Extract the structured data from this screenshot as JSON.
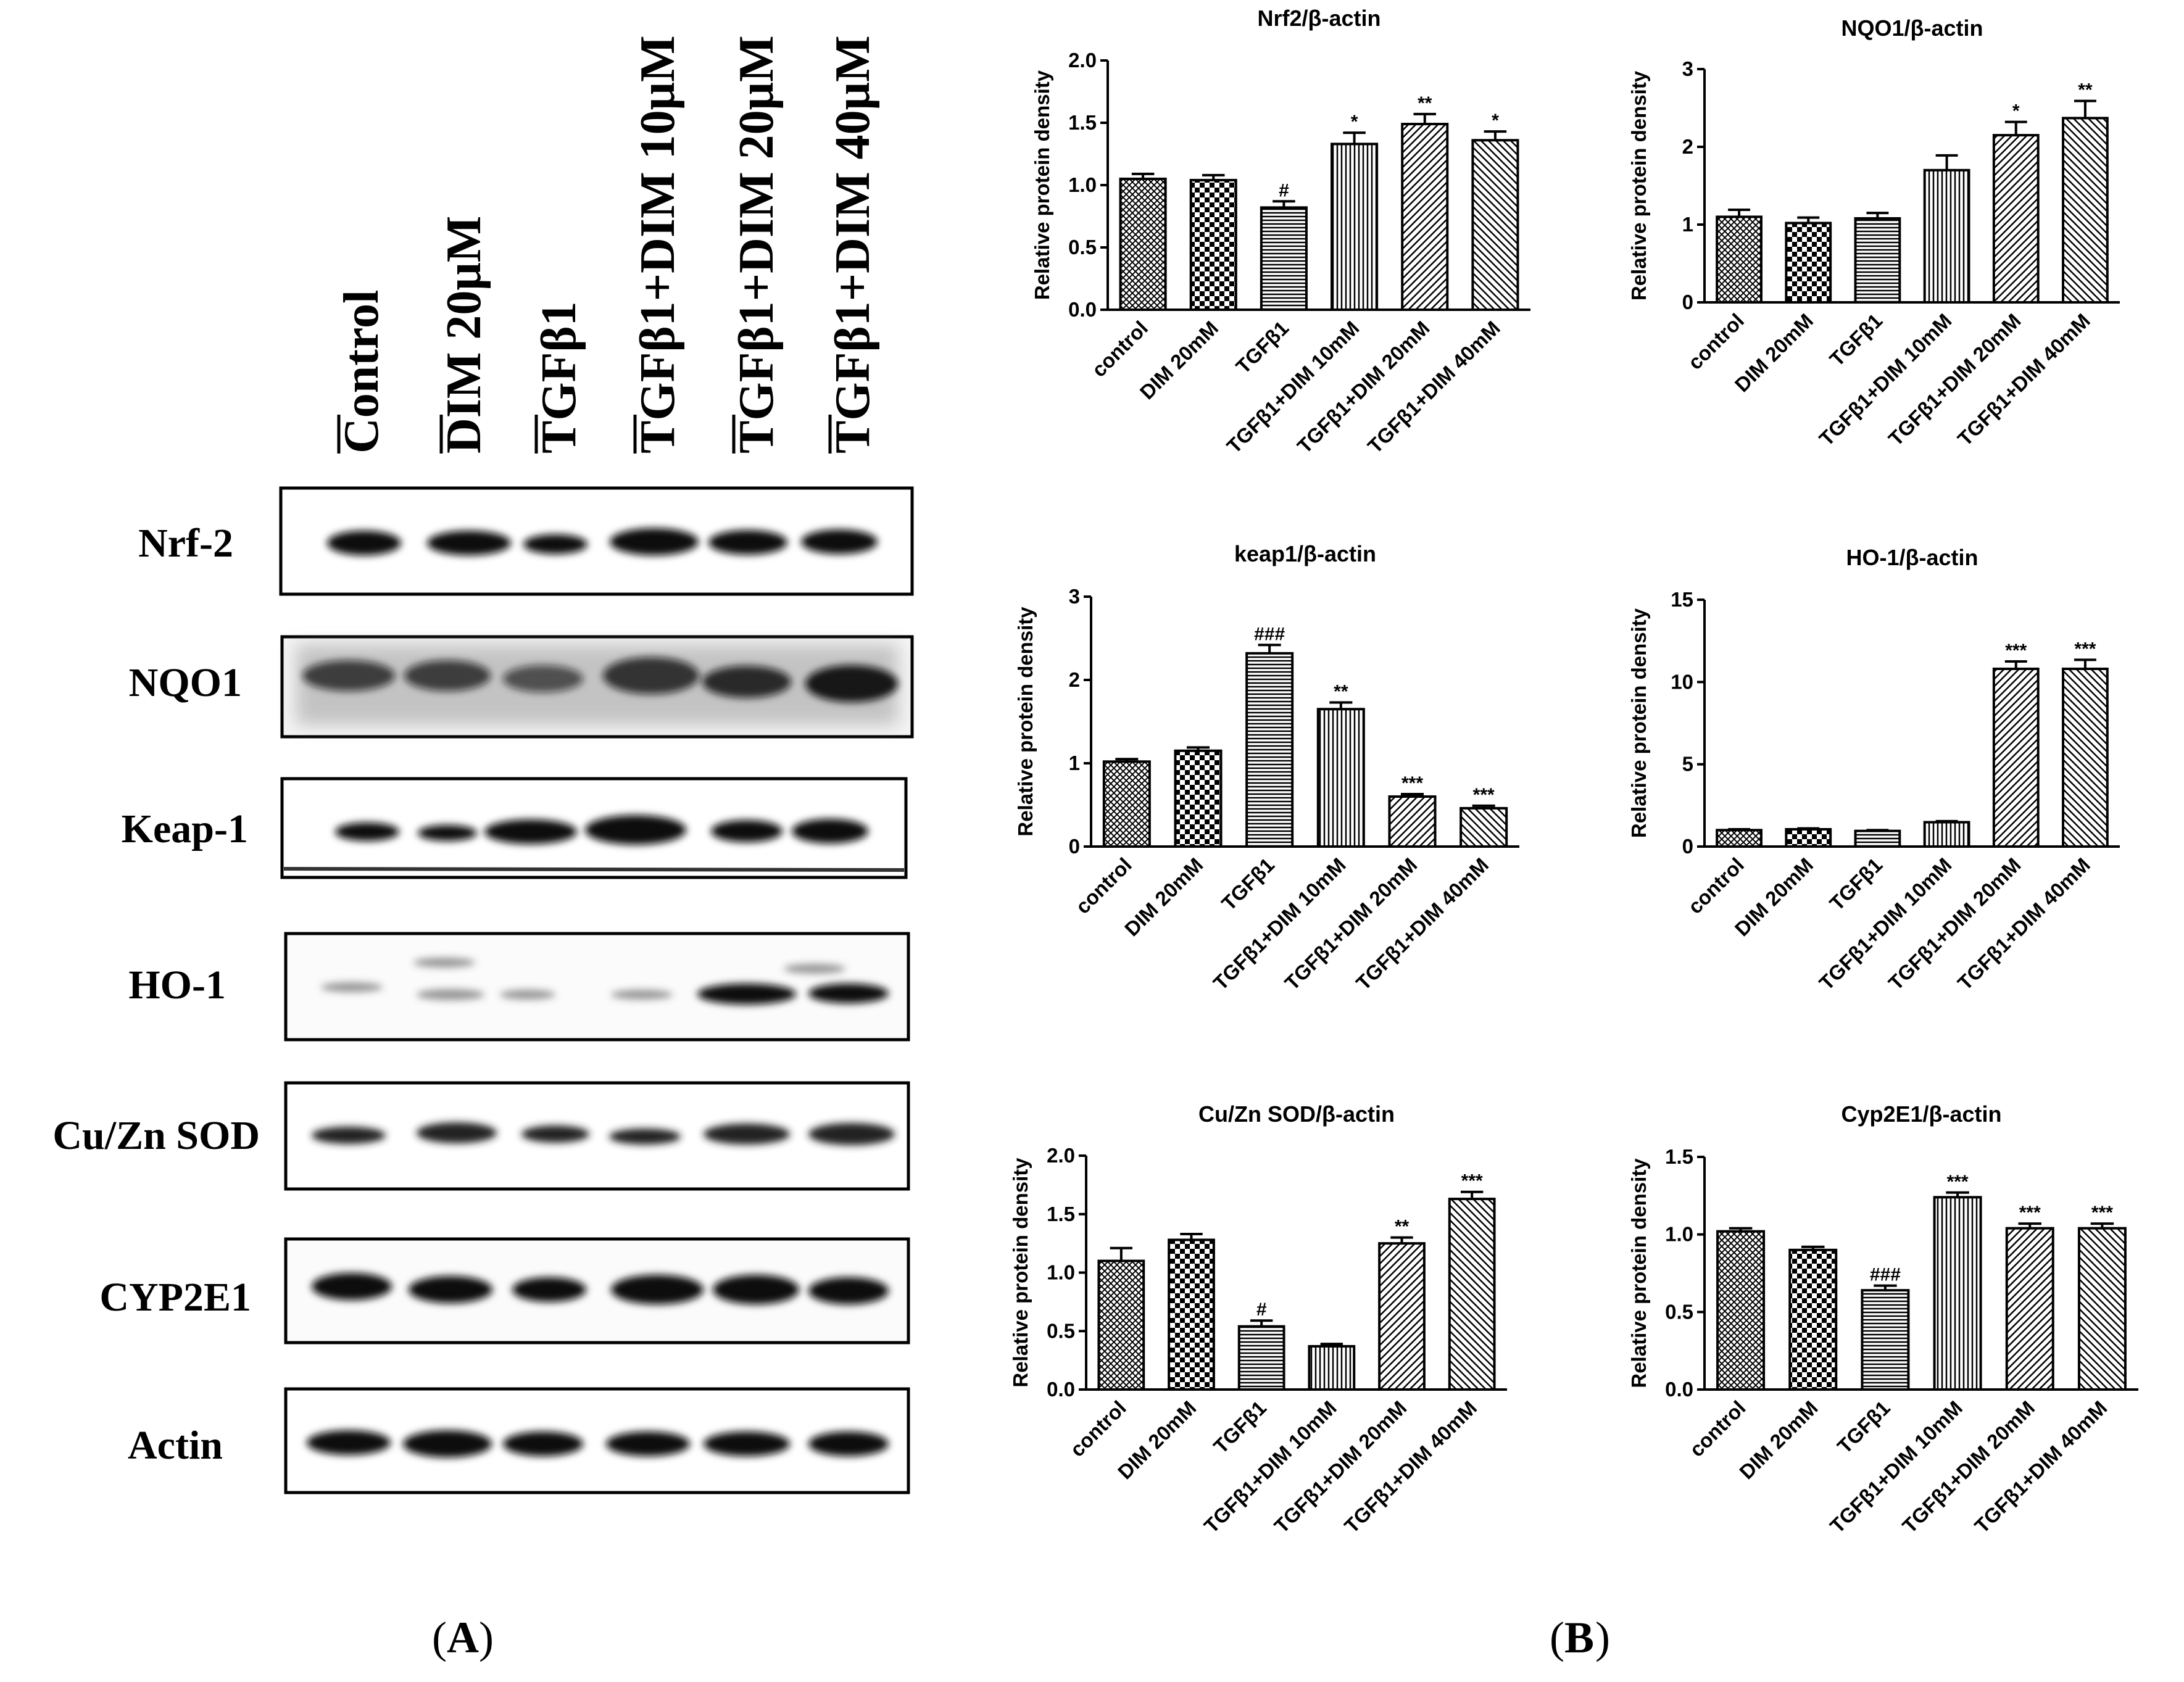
{
  "panel_labels": {
    "a": "A",
    "b": "B"
  },
  "blot": {
    "lanes": [
      "Control",
      "DIM 20μM",
      "TGFβ1",
      "TGFβ1+DIM 10μM",
      "TGFβ1+DIM 20μM",
      "TGFβ1+DIM 40μM"
    ],
    "proteins": [
      "Nrf-2",
      "NQO1",
      "Keap-1",
      "HO-1",
      "Cu/Zn SOD",
      "CYP2E1",
      "Actin"
    ]
  },
  "chart_data": [
    {
      "type": "bar",
      "title": "Nrf2/β-actin",
      "ylabel": "Relative protein density",
      "categories": [
        "control",
        "DIM 20mM",
        "TGFβ1",
        "TGFβ1+DIM 10mM",
        "TGFβ1+DIM 20mM",
        "TGFβ1+DIM 40mM"
      ],
      "values": [
        1.05,
        1.04,
        0.82,
        1.33,
        1.49,
        1.36
      ],
      "errors": [
        0.04,
        0.04,
        0.05,
        0.09,
        0.08,
        0.07
      ],
      "annotations": [
        "",
        "",
        "#",
        "*",
        "**",
        "*"
      ],
      "ylim": [
        0,
        2.0
      ],
      "yticks": [
        "0.0",
        "0.5",
        "1.0",
        "1.5",
        "2.0"
      ]
    },
    {
      "type": "bar",
      "title": "NQO1/β-actin",
      "ylabel": "Relative protein density",
      "categories": [
        "control",
        "DIM 20mM",
        "TGFβ1",
        "TGFβ1+DIM 10mM",
        "TGFβ1+DIM 20mM",
        "TGFβ1+DIM 40mM"
      ],
      "values": [
        1.1,
        1.02,
        1.08,
        1.7,
        2.15,
        2.37
      ],
      "errors": [
        0.09,
        0.07,
        0.07,
        0.19,
        0.17,
        0.22
      ],
      "annotations": [
        "",
        "",
        "",
        "",
        "*",
        "**"
      ],
      "ylim": [
        0,
        3
      ],
      "yticks": [
        "0",
        "1",
        "2",
        "3"
      ]
    },
    {
      "type": "bar",
      "title": "keap1/β-actin",
      "ylabel": "Relative protein density",
      "categories": [
        "control",
        "DIM 20mM",
        "TGFβ1",
        "TGFβ1+DIM 10mM",
        "TGFβ1+DIM 20mM",
        "TGFβ1+DIM 40mM"
      ],
      "values": [
        1.02,
        1.15,
        2.32,
        1.65,
        0.6,
        0.46
      ],
      "errors": [
        0.03,
        0.04,
        0.1,
        0.08,
        0.03,
        0.03
      ],
      "annotations": [
        "",
        "",
        "###",
        "**",
        "***",
        "***"
      ],
      "ylim": [
        0,
        3
      ],
      "yticks": [
        "0",
        "1",
        "2",
        "3"
      ]
    },
    {
      "type": "bar",
      "title": "HO-1/β-actin",
      "ylabel": "Relative protein density",
      "categories": [
        "control",
        "DIM 20mM",
        "TGFβ1",
        "TGFβ1+DIM 10mM",
        "TGFβ1+DIM 20mM",
        "TGFβ1+DIM 40mM"
      ],
      "values": [
        1.0,
        1.05,
        0.95,
        1.48,
        10.8,
        10.8
      ],
      "errors": [
        0.05,
        0.05,
        0.05,
        0.06,
        0.45,
        0.55
      ],
      "annotations": [
        "",
        "",
        "",
        "",
        "***",
        "***"
      ],
      "ylim": [
        0,
        15
      ],
      "yticks": [
        "0",
        "5",
        "10",
        "15"
      ]
    },
    {
      "type": "bar",
      "title": "Cu/Zn SOD/β-actin",
      "ylabel": "Relative protein density",
      "categories": [
        "control",
        "DIM 20mM",
        "TGFβ1",
        "TGFβ1+DIM 10mM",
        "TGFβ1+DIM 20mM",
        "TGFβ1+DIM 40mM"
      ],
      "values": [
        1.1,
        1.28,
        0.54,
        0.37,
        1.25,
        1.63
      ],
      "errors": [
        0.11,
        0.05,
        0.05,
        0.02,
        0.05,
        0.06
      ],
      "annotations": [
        "",
        "",
        "#",
        "",
        "**",
        "***"
      ],
      "ylim": [
        0,
        2.0
      ],
      "yticks": [
        "0.0",
        "0.5",
        "1.0",
        "1.5",
        "2.0"
      ]
    },
    {
      "type": "bar",
      "title": "Cyp2E1/β-actin",
      "ylabel": "Relative protein density",
      "categories": [
        "control",
        "DIM 20mM",
        "TGFβ1",
        "TGFβ1+DIM 10mM",
        "TGFβ1+DIM 20mM",
        "TGFβ1+DIM 40mM"
      ],
      "values": [
        1.02,
        0.9,
        0.64,
        1.24,
        1.04,
        1.04
      ],
      "errors": [
        0.02,
        0.02,
        0.03,
        0.03,
        0.03,
        0.03
      ],
      "annotations": [
        "",
        "",
        "###",
        "***",
        "***",
        "***"
      ],
      "ylim": [
        0,
        1.5
      ],
      "yticks": [
        "0.0",
        "0.5",
        "1.0",
        "1.5"
      ]
    }
  ]
}
